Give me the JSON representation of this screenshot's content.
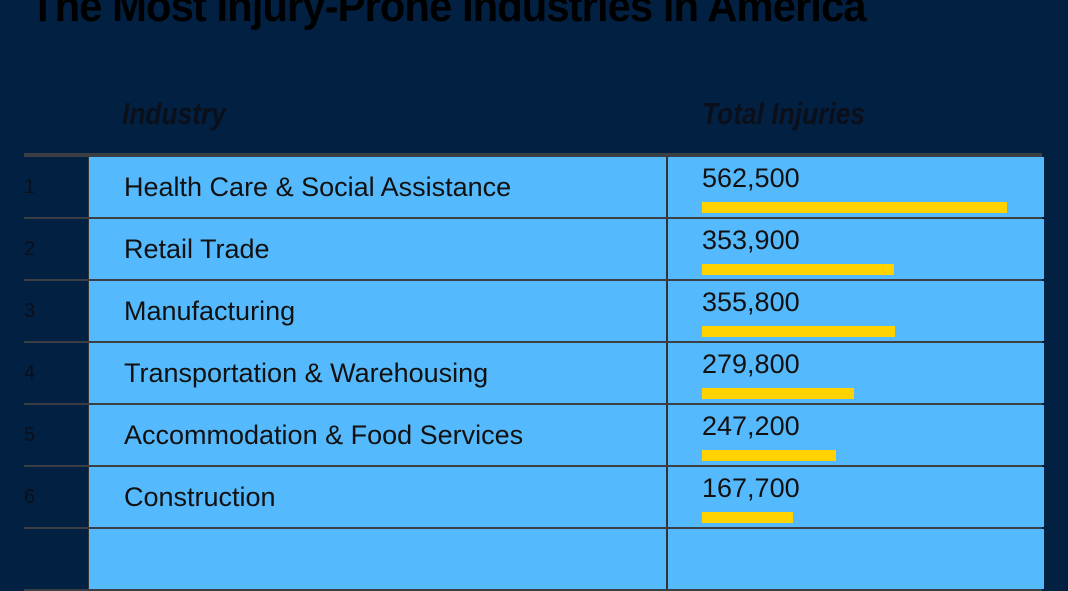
{
  "chart_data": {
    "type": "table",
    "title": "The Most Injury-Prone Industries in America",
    "columns": [
      "Industry",
      "Total Injuries"
    ],
    "rows": [
      {
        "rank": "1",
        "industry": "Health Care & Social Assistance",
        "value": 562500,
        "label": "562,500"
      },
      {
        "rank": "2",
        "industry": "Retail Trade",
        "value": 353900,
        "label": "353,900"
      },
      {
        "rank": "3",
        "industry": "Manufacturing",
        "value": 355800,
        "label": "355,800"
      },
      {
        "rank": "4",
        "industry": "Transportation & Warehousing",
        "value": 279800,
        "label": "279,800"
      },
      {
        "rank": "5",
        "industry": "Accommodation & Food Services",
        "value": 247200,
        "label": "247,200"
      },
      {
        "rank": "6",
        "industry": "Construction",
        "value": 167700,
        "label": "167,700"
      },
      {
        "rank": "",
        "industry": "",
        "value": null,
        "label": ""
      }
    ],
    "colors": {
      "background": "#022142",
      "cell": "#55b9fd",
      "bar": "#ffd200"
    }
  }
}
